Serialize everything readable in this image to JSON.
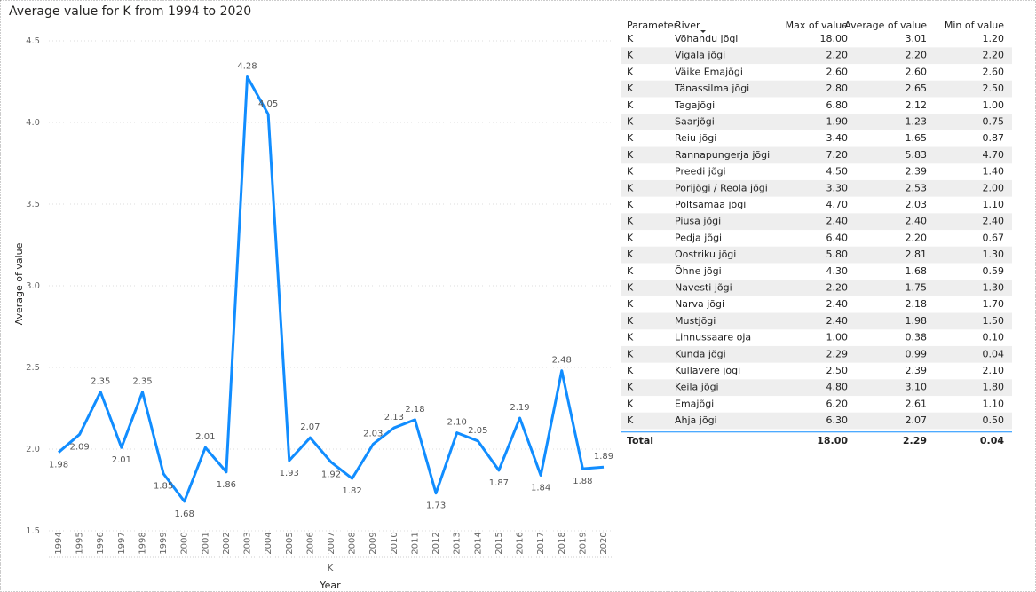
{
  "chart_data": {
    "type": "line",
    "title": "Average value for K from 1994 to 2020",
    "y_label": "Average of value",
    "x_label": "Year",
    "x_group_label": "K",
    "categories": [
      "1994",
      "1995",
      "1996",
      "1997",
      "1998",
      "1999",
      "2000",
      "2001",
      "2002",
      "2003",
      "2004",
      "2005",
      "2006",
      "2007",
      "2008",
      "2009",
      "2010",
      "2011",
      "2012",
      "2013",
      "2014",
      "2015",
      "2016",
      "2017",
      "2018",
      "2019",
      "2020"
    ],
    "values": [
      1.98,
      2.09,
      2.35,
      2.01,
      2.35,
      1.85,
      1.68,
      2.01,
      1.86,
      4.28,
      4.05,
      1.93,
      2.07,
      1.92,
      1.82,
      2.03,
      2.13,
      2.18,
      1.73,
      2.1,
      2.05,
      1.87,
      2.19,
      1.84,
      2.48,
      1.88,
      1.89
    ],
    "value_labels": [
      "1.98",
      "2.09",
      "2.35",
      "2.01",
      "2.35",
      "1.85",
      "1.68",
      "2.01",
      "1.86",
      "4.28",
      "4.05",
      "1.93",
      "2.07",
      "1.92",
      "1.82",
      "2.03",
      "2.13",
      "2.18",
      "1.73",
      "2.10",
      "2.05",
      "1.87",
      "2.19",
      "1.84",
      "2.48",
      "1.88",
      "1.89"
    ],
    "color": "#118dff",
    "ylim": [
      1.5,
      4.5
    ],
    "yticks": [
      1.5,
      {
        "value": 2,
        "label": "2.0"
      },
      2.5,
      {
        "value": 3,
        "label": "3.0"
      },
      3.5,
      {
        "value": 4,
        "label": "4.0"
      },
      4.5
    ],
    "grid": true
  },
  "table": {
    "columns": [
      "Parameter",
      "River",
      "Max of value",
      "Average of value",
      "Min of value"
    ],
    "rows": [
      [
        "K",
        "Võhandu jõgi",
        "18.00",
        "3.01",
        "1.20"
      ],
      [
        "K",
        "Vigala jõgi",
        "2.20",
        "2.20",
        "2.20"
      ],
      [
        "K",
        "Väike Emajõgi",
        "2.60",
        "2.60",
        "2.60"
      ],
      [
        "K",
        "Tänassilma jõgi",
        "2.80",
        "2.65",
        "2.50"
      ],
      [
        "K",
        "Tagajõgi",
        "6.80",
        "2.12",
        "1.00"
      ],
      [
        "K",
        "Saarjõgi",
        "1.90",
        "1.23",
        "0.75"
      ],
      [
        "K",
        "Reiu jõgi",
        "3.40",
        "1.65",
        "0.87"
      ],
      [
        "K",
        "Rannapungerja jõgi",
        "7.20",
        "5.83",
        "4.70"
      ],
      [
        "K",
        "Preedi jõgi",
        "4.50",
        "2.39",
        "1.40"
      ],
      [
        "K",
        "Porijõgi / Reola jõgi",
        "3.30",
        "2.53",
        "2.00"
      ],
      [
        "K",
        "Põltsamaa jõgi",
        "4.70",
        "2.03",
        "1.10"
      ],
      [
        "K",
        "Piusa jõgi",
        "2.40",
        "2.40",
        "2.40"
      ],
      [
        "K",
        "Pedja jõgi",
        "6.40",
        "2.20",
        "0.67"
      ],
      [
        "K",
        "Oostriku jõgi",
        "5.80",
        "2.81",
        "1.30"
      ],
      [
        "K",
        "Õhne jõgi",
        "4.30",
        "1.68",
        "0.59"
      ],
      [
        "K",
        "Navesti jõgi",
        "2.20",
        "1.75",
        "1.30"
      ],
      [
        "K",
        "Narva jõgi",
        "2.40",
        "2.18",
        "1.70"
      ],
      [
        "K",
        "Mustjõgi",
        "2.40",
        "1.98",
        "1.50"
      ],
      [
        "K",
        "Linnussaare oja",
        "1.00",
        "0.38",
        "0.10"
      ],
      [
        "K",
        "Kunda jõgi",
        "2.29",
        "0.99",
        "0.04"
      ],
      [
        "K",
        "Kullavere jõgi",
        "2.50",
        "2.39",
        "2.10"
      ],
      [
        "K",
        "Keila jõgi",
        "4.80",
        "3.10",
        "1.80"
      ],
      [
        "K",
        "Emajõgi",
        "6.20",
        "2.61",
        "1.10"
      ],
      [
        "K",
        "Ahja jõgi",
        "6.30",
        "2.07",
        "0.50"
      ]
    ],
    "total": {
      "label": "Total",
      "max": "18.00",
      "average": "2.29",
      "min": "0.04"
    }
  }
}
